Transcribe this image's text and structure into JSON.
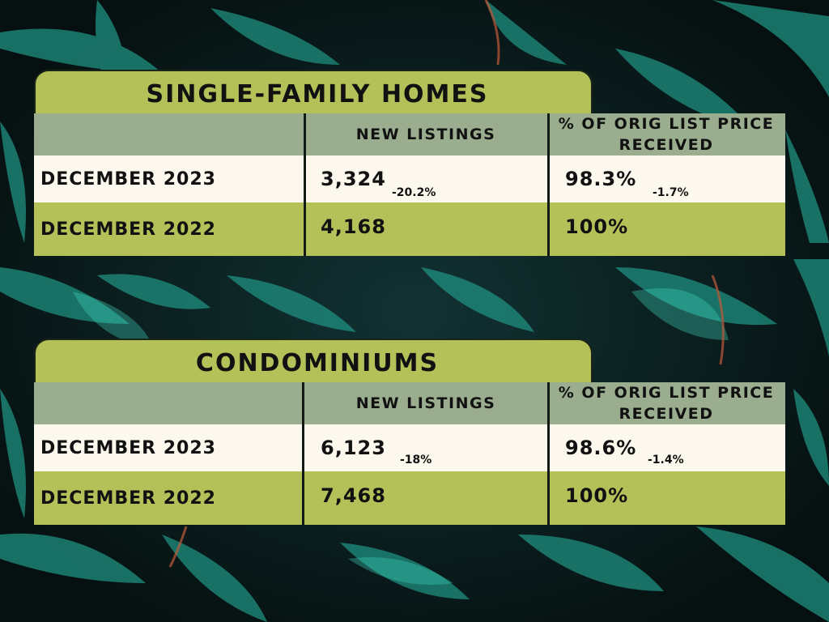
{
  "sections": [
    {
      "title": "SINGLE-FAMILY HOMES",
      "headers": {
        "new_listings": "NEW LISTINGS",
        "pct_orig_list": "% OF ORIG LIST PRICE RECEIVED"
      },
      "rows": [
        {
          "label": "DECEMBER 2023",
          "new_listings": "3,324",
          "new_listings_change": "-20.2%",
          "pct": "98.3%",
          "pct_change": "-1.7%"
        },
        {
          "label": "DECEMBER 2022",
          "new_listings": "4,168",
          "pct": "100%"
        }
      ]
    },
    {
      "title": "CONDOMINIUMS",
      "headers": {
        "new_listings": "NEW LISTINGS",
        "pct_orig_list": "% OF ORIG LIST PRICE RECEIVED"
      },
      "rows": [
        {
          "label": "DECEMBER 2023",
          "new_listings": "6,123",
          "new_listings_change": "-18%",
          "pct": "98.6%",
          "pct_change": "-1.4%"
        },
        {
          "label": "DECEMBER 2022",
          "new_listings": "7,468",
          "pct": "100%"
        }
      ]
    }
  ],
  "colors": {
    "olive": "#b4c158",
    "sage": "#9aae8f",
    "cream": "#fdf8ee",
    "leaf": "#1f8f80",
    "background": "#0b1a1a"
  }
}
